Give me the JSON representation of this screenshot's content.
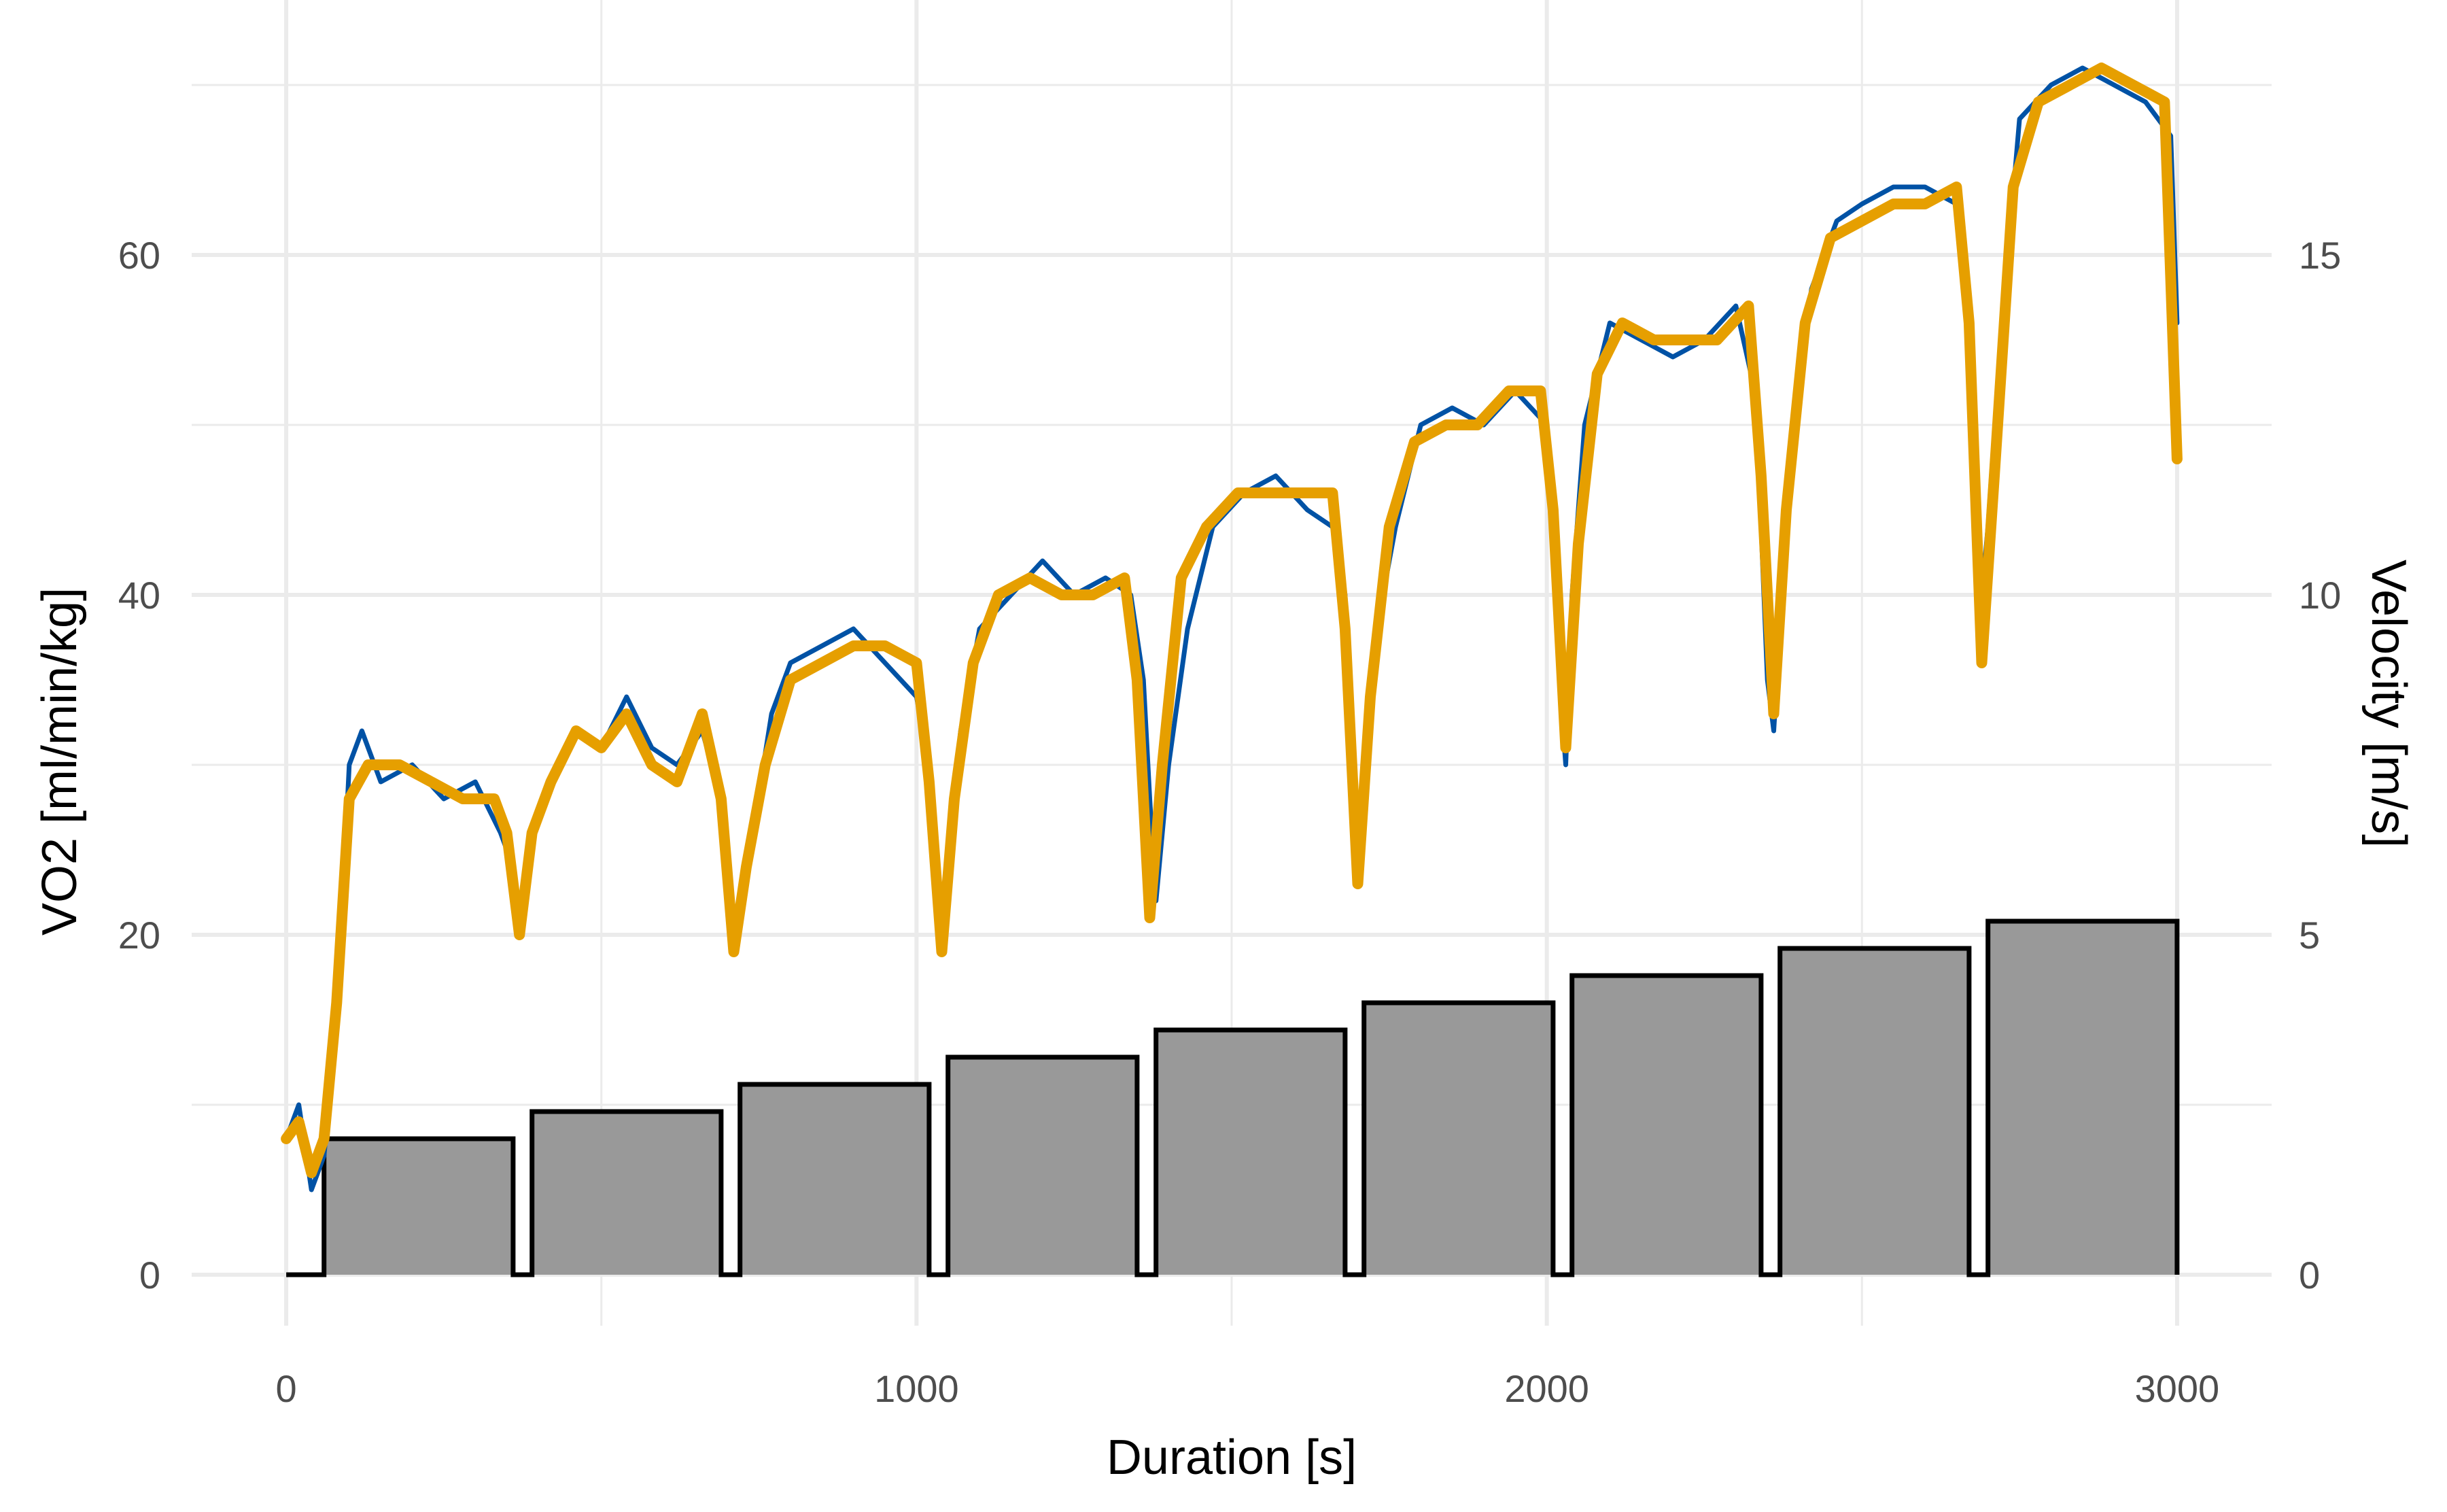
{
  "chart_data": {
    "type": "line",
    "title": "",
    "xlabel": "Duration [s]",
    "ylabel": "VO2 [ml/min/kg]",
    "y2label": "Velocity [m/s]",
    "xlim": [
      -150,
      3150
    ],
    "ylim": [
      -3,
      75
    ],
    "y2lim": [
      0,
      15
    ],
    "y2_scale_factor": 4,
    "grid": true,
    "legend": "none",
    "x_ticks": [
      0,
      1000,
      2000,
      3000
    ],
    "y_ticks": [
      0,
      20,
      40,
      60
    ],
    "y2_ticks": [
      0,
      5,
      10,
      15
    ],
    "colors": {
      "vo2_raw": "#0052A5",
      "vo2_smooth": "#E69F00",
      "velocity_fill": "#999999",
      "velocity_outline": "#000000",
      "grid": "#EBEBEB"
    },
    "series": [
      {
        "type": "step-area",
        "axis": "y2",
        "x": [
          0,
          60,
          60,
          360,
          360,
          390,
          390,
          690,
          690,
          720,
          720,
          1020,
          1020,
          1050,
          1050,
          1350,
          1350,
          1380,
          1380,
          1680,
          1680,
          1710,
          1710,
          2010,
          2010,
          2040,
          2040,
          2340,
          2340,
          2370,
          2370,
          2670,
          2670,
          2700,
          2700,
          3000,
          3000
        ],
        "values": [
          0,
          0,
          2,
          2,
          0,
          0,
          2.4,
          2.4,
          0,
          0,
          2.8,
          2.8,
          0,
          0,
          3.2,
          3.2,
          0,
          0,
          3.6,
          3.6,
          0,
          0,
          4.0,
          4.0,
          0,
          0,
          4.4,
          4.4,
          0,
          0,
          4.8,
          4.8,
          0,
          0,
          5.2,
          5.2,
          0
        ]
      },
      {
        "type": "line",
        "axis": "y",
        "x": [
          0,
          20,
          40,
          60,
          80,
          100,
          120,
          150,
          200,
          250,
          300,
          340,
          360,
          370,
          380,
          390,
          410,
          430,
          460,
          500,
          540,
          580,
          620,
          660,
          690,
          700,
          710,
          720,
          740,
          770,
          800,
          850,
          900,
          950,
          1000,
          1020,
          1030,
          1040,
          1050,
          1070,
          1100,
          1150,
          1200,
          1250,
          1300,
          1340,
          1360,
          1370,
          1380,
          1400,
          1430,
          1470,
          1520,
          1570,
          1620,
          1660,
          1680,
          1690,
          1700,
          1710,
          1730,
          1760,
          1800,
          1850,
          1900,
          1950,
          2000,
          2010,
          2020,
          2030,
          2040,
          2060,
          2100,
          2150,
          2200,
          2250,
          2300,
          2330,
          2340,
          2350,
          2360,
          2370,
          2390,
          2420,
          2460,
          2500,
          2550,
          2600,
          2650,
          2670,
          2680,
          2690,
          2700,
          2720,
          2750,
          2800,
          2850,
          2900,
          2950,
          2990,
          3000
        ],
        "values": [
          8,
          10,
          5,
          7,
          15,
          30,
          32,
          29,
          30,
          28,
          29,
          26,
          24,
          20,
          22,
          26,
          28,
          30,
          32,
          31,
          34,
          31,
          30,
          32,
          28,
          25,
          20,
          22,
          26,
          33,
          36,
          37,
          38,
          36,
          34,
          30,
          22,
          19,
          25,
          32,
          38,
          40,
          42,
          40,
          41,
          40,
          35,
          28,
          22,
          30,
          38,
          44,
          46,
          47,
          45,
          44,
          40,
          30,
          24,
          28,
          38,
          44,
          50,
          51,
          50,
          52,
          50,
          44,
          35,
          30,
          40,
          50,
          56,
          55,
          54,
          55,
          57,
          52,
          44,
          35,
          32,
          38,
          50,
          58,
          62,
          63,
          64,
          64,
          63,
          56,
          48,
          40,
          44,
          55,
          68,
          70,
          71,
          70,
          69,
          67,
          56
        ]
      },
      {
        "type": "line",
        "axis": "y",
        "x": [
          0,
          20,
          40,
          60,
          80,
          100,
          130,
          180,
          230,
          280,
          330,
          350,
          370,
          390,
          420,
          460,
          500,
          540,
          580,
          620,
          660,
          690,
          710,
          730,
          760,
          800,
          850,
          900,
          950,
          1000,
          1020,
          1040,
          1060,
          1090,
          1130,
          1180,
          1230,
          1280,
          1330,
          1350,
          1370,
          1390,
          1420,
          1460,
          1510,
          1560,
          1610,
          1660,
          1680,
          1700,
          1720,
          1750,
          1790,
          1840,
          1890,
          1940,
          1990,
          2010,
          2030,
          2050,
          2080,
          2120,
          2170,
          2220,
          2270,
          2320,
          2340,
          2360,
          2380,
          2410,
          2450,
          2500,
          2550,
          2600,
          2650,
          2670,
          2690,
          2710,
          2740,
          2780,
          2830,
          2880,
          2930,
          2980,
          3000
        ],
        "values": [
          8,
          9,
          6,
          8,
          16,
          28,
          30,
          30,
          29,
          28,
          28,
          26,
          20,
          26,
          29,
          32,
          31,
          33,
          30,
          29,
          33,
          28,
          19,
          24,
          30,
          35,
          36,
          37,
          37,
          36,
          29,
          19,
          28,
          36,
          40,
          41,
          40,
          40,
          41,
          35,
          21,
          30,
          41,
          44,
          46,
          46,
          46,
          46,
          38,
          23,
          34,
          44,
          49,
          50,
          50,
          52,
          52,
          45,
          31,
          43,
          53,
          56,
          55,
          55,
          55,
          57,
          47,
          33,
          45,
          56,
          61,
          62,
          63,
          63,
          64,
          56,
          36,
          47,
          64,
          69,
          70,
          71,
          70,
          69,
          48
        ]
      }
    ]
  }
}
